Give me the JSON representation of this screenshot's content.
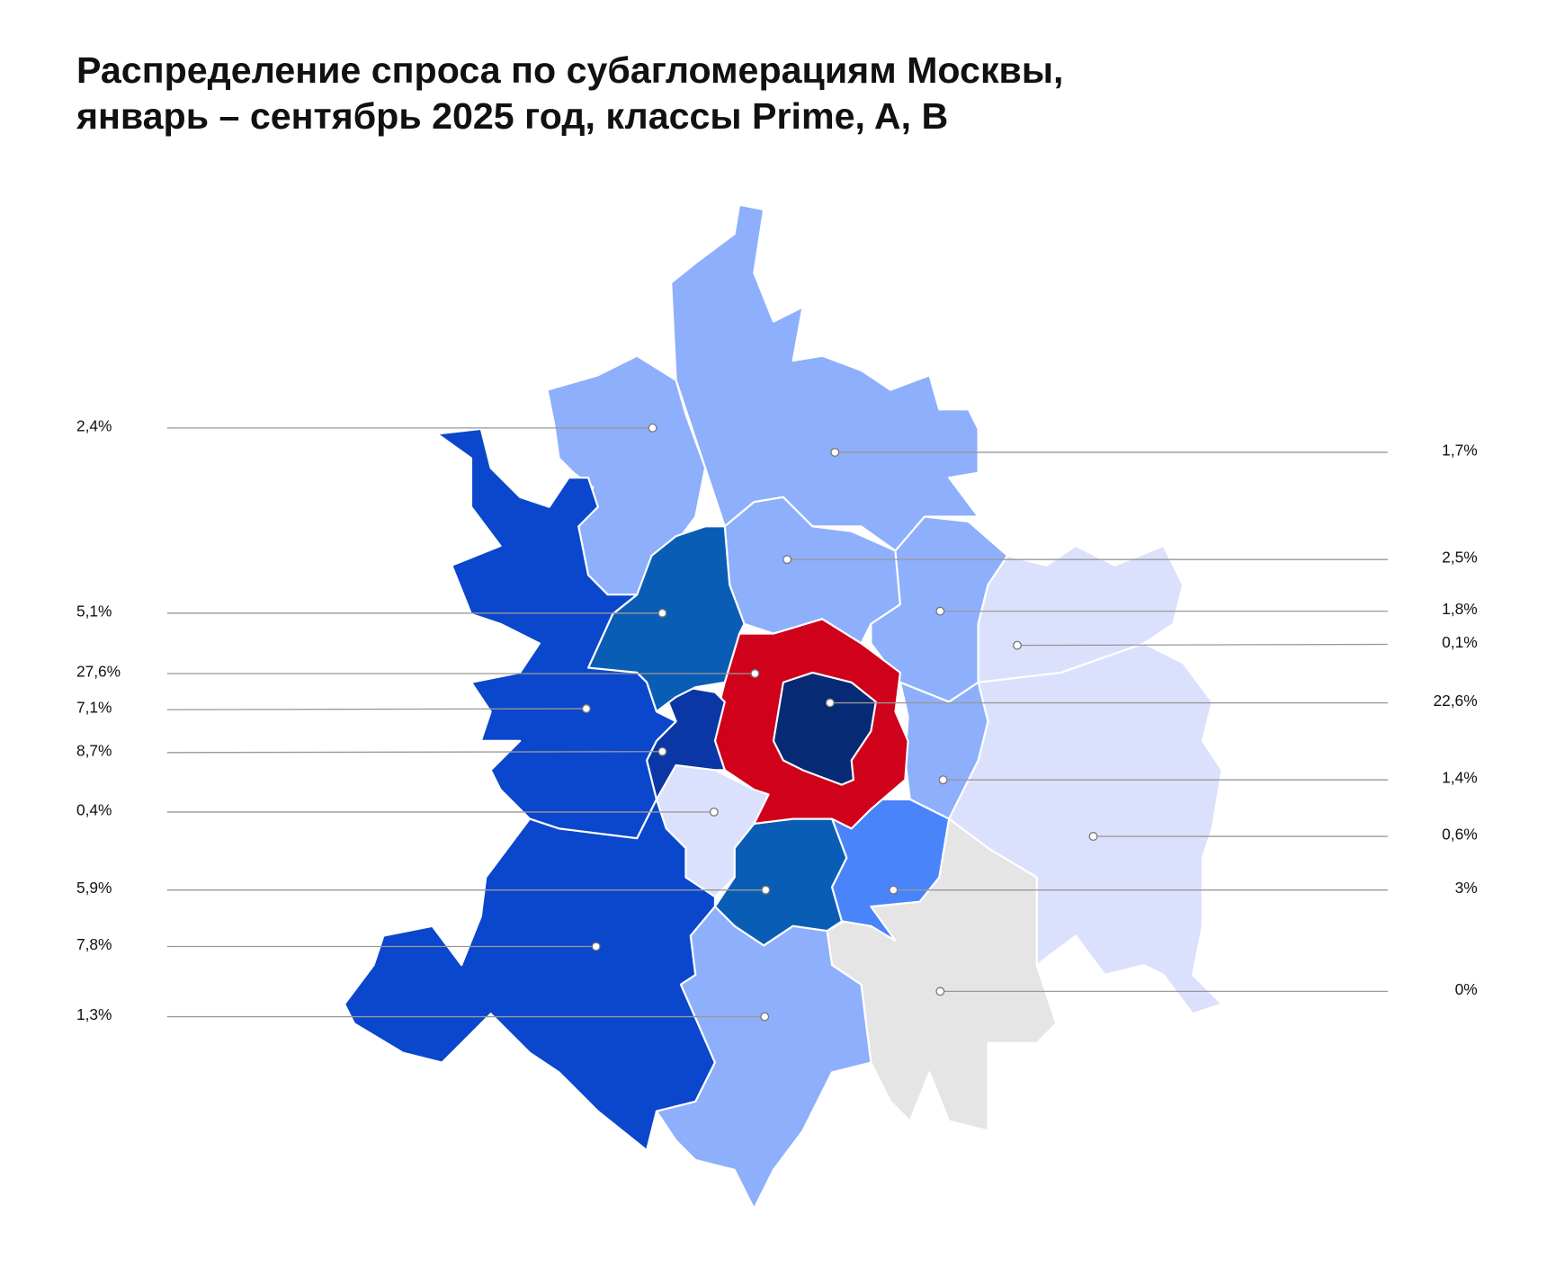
{
  "header": {
    "title_lines": [
      "Распределение спроса по субагломерациям Москвы,",
      "январь – сентябрь 2025 год, классы Prime, A, B"
    ]
  },
  "regions": [
    {
      "label": "2,4%",
      "color": "#8daffc"
    },
    {
      "label": "5,1%",
      "color": "#0a5db5"
    },
    {
      "label": "27,6%",
      "color": "#d0021b"
    },
    {
      "label": "7,1%",
      "color": "#0a47cc"
    },
    {
      "label": "8,7%",
      "color": "#0a37a5"
    },
    {
      "label": "0,4%",
      "color": "#dbe1fc"
    },
    {
      "label": "5,9%",
      "color": "#0a5db5"
    },
    {
      "label": "7,8%",
      "color": "#0a47cc"
    },
    {
      "label": "1,3%",
      "color": "#8daffc"
    },
    {
      "label": "1,7%",
      "color": "#8daffc"
    },
    {
      "label": "2,5%",
      "color": "#8daffc"
    },
    {
      "label": "1,8%",
      "color": "#8daffc"
    },
    {
      "label": "0,1%",
      "color": "#dbe1fc"
    },
    {
      "label": "22,6%",
      "color": "#062a73"
    },
    {
      "label": "1,4%",
      "color": "#8daffc"
    },
    {
      "label": "0,6%",
      "color": "#dbe1fc"
    },
    {
      "label": "3%",
      "color": "#4a84fb"
    },
    {
      "label": "0%",
      "color": "#e5e5e5"
    }
  ]
}
